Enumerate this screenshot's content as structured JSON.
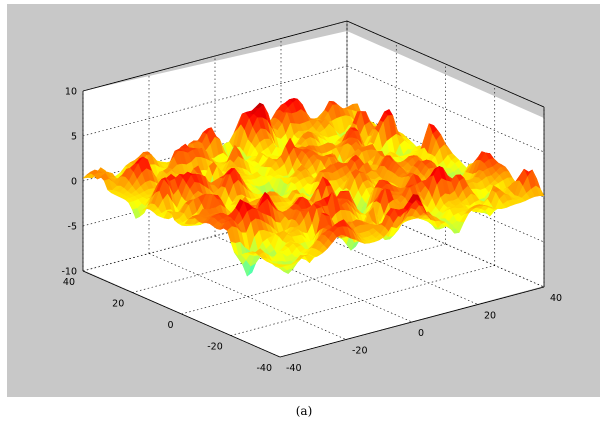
{
  "caption": "(a)",
  "chart_data": {
    "type": "surface",
    "title": "",
    "xlabel": "",
    "ylabel": "",
    "zlabel": "",
    "xlim": [
      -40,
      40
    ],
    "ylim": [
      -40,
      40
    ],
    "zlim": [
      -10,
      10
    ],
    "x_ticks": [
      "-40",
      "-20",
      "0",
      "20",
      "40"
    ],
    "y_ticks": [
      "40",
      "20",
      "0",
      "-20",
      "-40"
    ],
    "z_ticks": [
      "10",
      "5",
      "0",
      "-5",
      "-10"
    ],
    "surface": {
      "description_range": [
        -4,
        4
      ],
      "colormap": "jet"
    },
    "grid": true,
    "background_color": "#c8c8c8",
    "axes_color": "#ffffff"
  }
}
